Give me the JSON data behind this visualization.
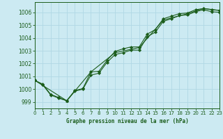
{
  "title": "Graphe pression niveau de la mer (hPa)",
  "background_color": "#cceaf2",
  "grid_color": "#b0d8e4",
  "line_color": "#1a5c1a",
  "x_min": 0,
  "x_max": 23,
  "y_min": 998.5,
  "y_max": 1006.8,
  "x_ticks": [
    0,
    1,
    2,
    3,
    4,
    5,
    6,
    7,
    8,
    9,
    10,
    11,
    12,
    13,
    14,
    15,
    16,
    17,
    18,
    19,
    20,
    21,
    22,
    23
  ],
  "y_ticks": [
    999,
    1000,
    1001,
    1002,
    1003,
    1004,
    1005,
    1006
  ],
  "series1_marked": [
    [
      0,
      1000.7
    ],
    [
      1,
      1000.4
    ],
    [
      2,
      999.6
    ],
    [
      3,
      999.35
    ],
    [
      4,
      999.1
    ],
    [
      5,
      999.9
    ],
    [
      6,
      1000.05
    ],
    [
      7,
      1001.35
    ],
    [
      8,
      1001.4
    ],
    [
      9,
      1002.25
    ],
    [
      10,
      1002.95
    ],
    [
      11,
      1003.15
    ],
    [
      12,
      1003.3
    ],
    [
      13,
      1003.3
    ],
    [
      14,
      1004.3
    ],
    [
      15,
      1004.65
    ],
    [
      16,
      1005.5
    ],
    [
      17,
      1005.7
    ],
    [
      18,
      1005.9
    ],
    [
      19,
      1005.95
    ],
    [
      20,
      1006.2
    ],
    [
      21,
      1006.3
    ],
    [
      22,
      1006.2
    ],
    [
      23,
      1006.15
    ]
  ],
  "series2_marked": [
    [
      0,
      1000.7
    ],
    [
      1,
      1000.35
    ],
    [
      2,
      999.55
    ],
    [
      3,
      999.3
    ],
    [
      4,
      999.1
    ],
    [
      5,
      999.85
    ],
    [
      6,
      1000.0
    ],
    [
      7,
      1001.1
    ],
    [
      8,
      1001.25
    ],
    [
      9,
      1002.1
    ],
    [
      10,
      1002.7
    ],
    [
      11,
      1002.85
    ],
    [
      12,
      1003.05
    ],
    [
      13,
      1003.05
    ],
    [
      14,
      1004.1
    ],
    [
      15,
      1004.45
    ],
    [
      16,
      1005.3
    ],
    [
      17,
      1005.5
    ],
    [
      18,
      1005.75
    ],
    [
      19,
      1005.8
    ],
    [
      20,
      1006.05
    ],
    [
      21,
      1006.2
    ],
    [
      22,
      1006.05
    ],
    [
      23,
      1006.0
    ]
  ],
  "series3_smooth": [
    [
      0,
      1000.7
    ],
    [
      4,
      999.1
    ],
    [
      7,
      1001.35
    ],
    [
      10,
      1002.85
    ],
    [
      13,
      1003.25
    ],
    [
      16,
      1005.4
    ],
    [
      19,
      1005.9
    ],
    [
      21,
      1006.3
    ],
    [
      23,
      1006.15
    ]
  ]
}
